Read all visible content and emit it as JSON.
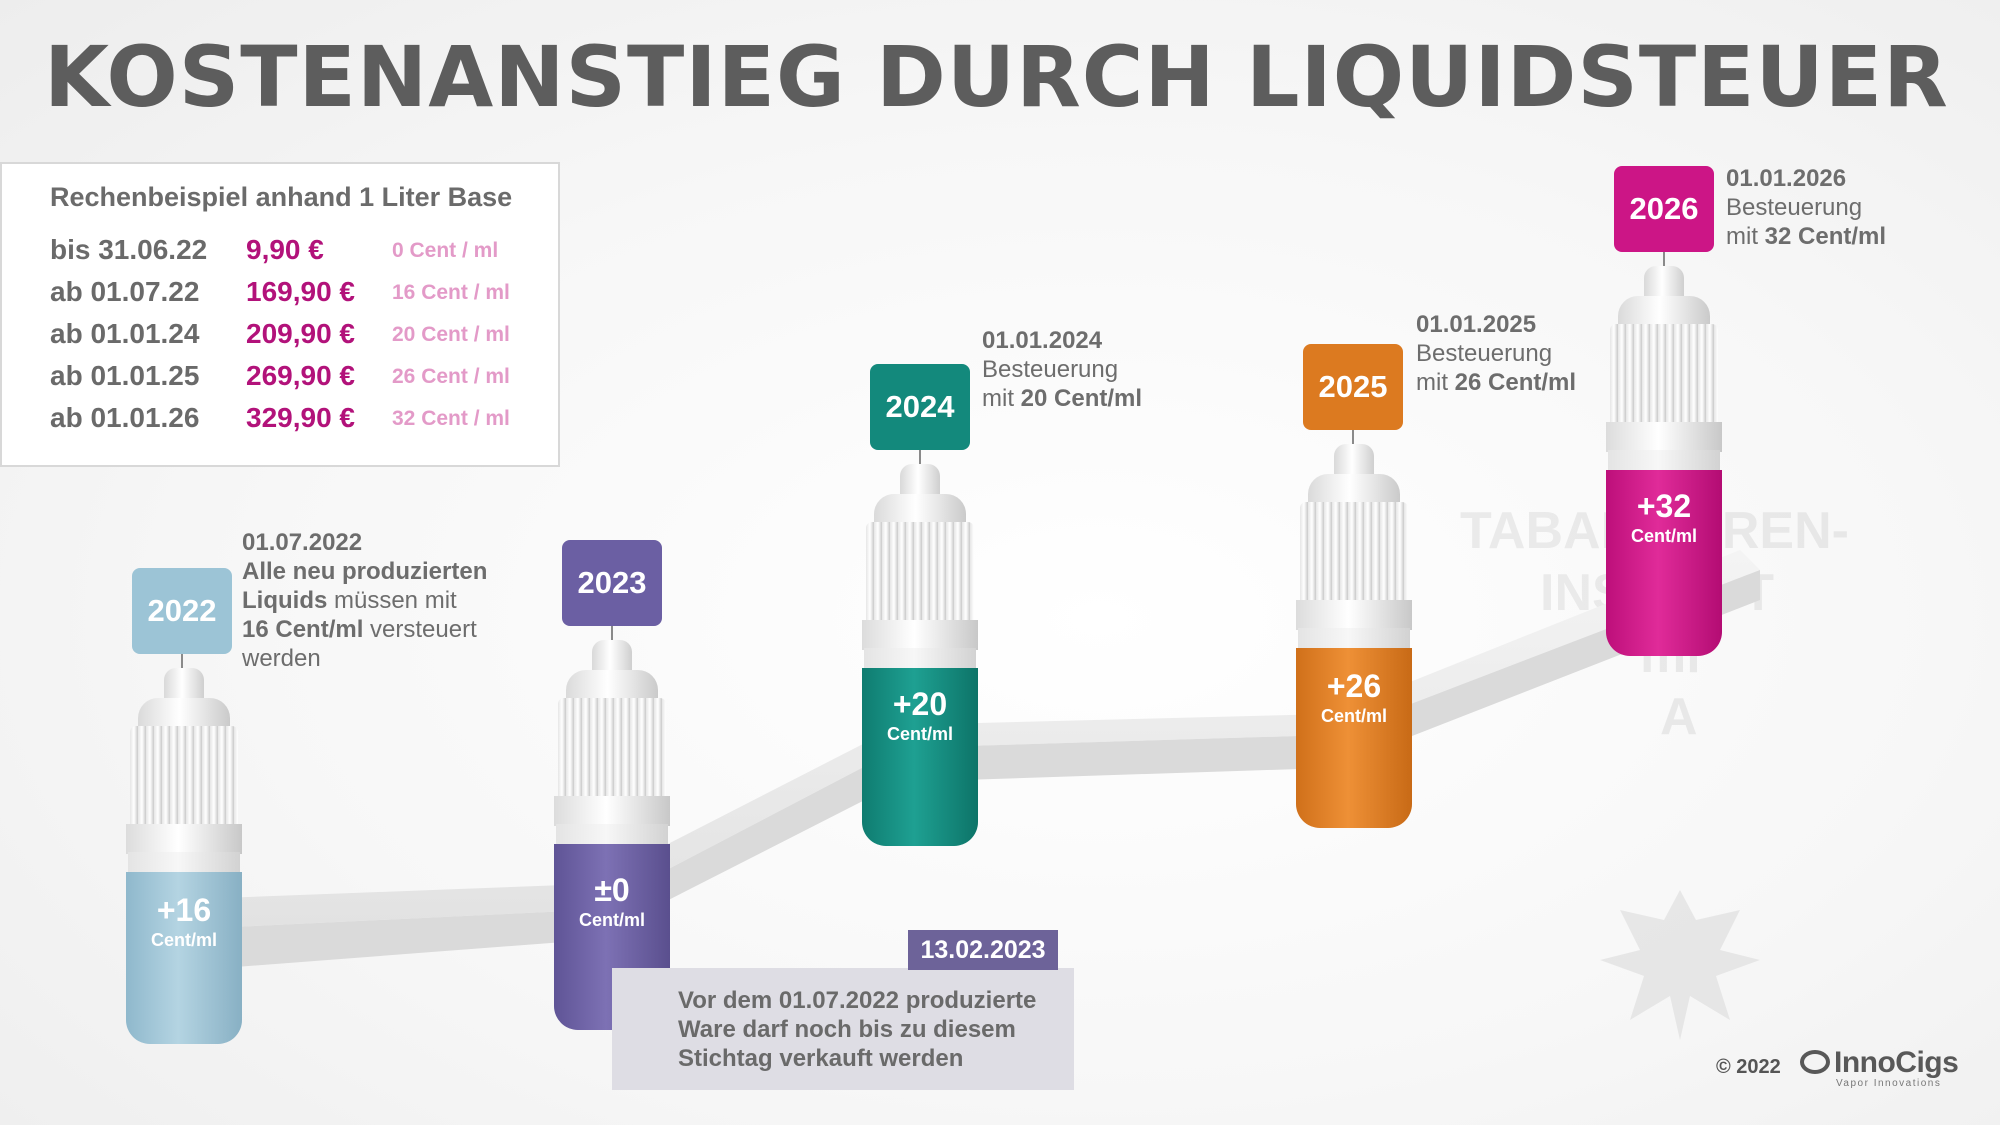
{
  "title": "KOSTENANSTIEG DURCH LIQUIDSTEUER",
  "price_box": {
    "heading": "Rechenbeispiel anhand 1 Liter Base",
    "rows": [
      {
        "date": "bis 31.06.22",
        "price": "9,90 €",
        "rate": "0 Cent / ml"
      },
      {
        "date": "ab 01.07.22",
        "price": "169,90 €",
        "rate": "16 Cent / ml"
      },
      {
        "date": "ab 01.01.24",
        "price": "209,90 €",
        "rate": "20 Cent / ml"
      },
      {
        "date": "ab 01.01.25",
        "price": "269,90 €",
        "rate": "26 Cent / ml"
      },
      {
        "date": "ab 01.01.26",
        "price": "329,90 €",
        "rate": "32 Cent / ml"
      }
    ]
  },
  "steps": [
    {
      "year": "2022",
      "amount": "+16",
      "unit": "Cent/ml",
      "color": "#9cc4d6"
    },
    {
      "year": "2023",
      "amount": "±0",
      "unit": "Cent/ml",
      "color": "#6b5fa3"
    },
    {
      "year": "2024",
      "amount": "+20",
      "unit": "Cent/ml",
      "color": "#13897c"
    },
    {
      "year": "2025",
      "amount": "+26",
      "unit": "Cent/ml",
      "color": "#dc7a20"
    },
    {
      "year": "2026",
      "amount": "+32",
      "unit": "Cent/ml",
      "color": "#cc1586"
    }
  ],
  "notes": {
    "n2022": {
      "date": "01.07.2022",
      "l1": "Alle neu produzierten",
      "l2a": "Liquids",
      "l2b": " müssen mit",
      "l3a": "16 Cent/ml",
      "l3b": " versteuert",
      "l4": "werden"
    },
    "n2024": {
      "date": "01.01.2024",
      "l1": "Besteuerung",
      "l2a": "mit ",
      "l2b": "20 Cent/ml"
    },
    "n2025": {
      "date": "01.01.2025",
      "l1": "Besteuerung",
      "l2a": "mit ",
      "l2b": "26 Cent/ml"
    },
    "n2026": {
      "date": "01.01.2026",
      "l1": "Besteuerung",
      "l2a": "mit ",
      "l2b": "32 Cent/ml"
    }
  },
  "stichtag": {
    "date": "13.02.2023",
    "lines": [
      "Vor dem 01.07.2022 produzierte",
      "Ware darf noch bis zu diesem",
      "Stichtag verkauft werden"
    ]
  },
  "background_seal": {
    "lines": [
      "TABAKWAREN-",
      "INSTITUT",
      "ml",
      "A"
    ]
  },
  "footer": {
    "copyright": "© 2022",
    "logo_name": "InnoCigs",
    "logo_sub": "Vapor Innovations"
  }
}
